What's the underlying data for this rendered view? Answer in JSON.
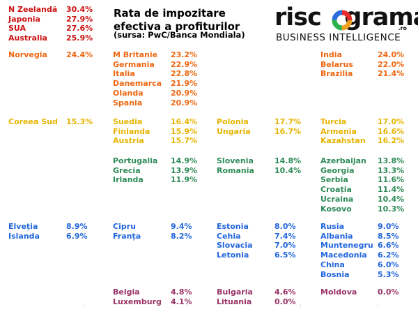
{
  "header": {
    "title_line1": "Rata de impozitare",
    "title_line2": "efectiva a profiturilor",
    "source": "(sursa: PwC/Banca Mondiala)"
  },
  "logo": {
    "word": "riscograma",
    "domain": ".ro",
    "tagline": "BUSINESS INTELLIGENCE"
  },
  "colors": {
    "red": "#cc1111",
    "orange": "#ee6611",
    "yellow": "#e6b400",
    "green": "#2e8b57",
    "blue": "#2266dd",
    "purple": "#993366"
  },
  "chart_data": {
    "type": "table",
    "title": "Rata de impozitare efectiva a profiturilor",
    "subtitle": "(sursa: PwC/Banca Mondiala)",
    "groups": [
      {
        "color": "red",
        "entries": [
          {
            "name": "N Zeelandă",
            "value": "30.4%"
          },
          {
            "name": "Japonia",
            "value": "27.9%"
          },
          {
            "name": "SUA",
            "value": "27.6%"
          },
          {
            "name": "Australia",
            "value": "25.9%"
          }
        ]
      },
      {
        "color": "orange",
        "entries": [
          {
            "name": "Norvegia",
            "value": "24.4%"
          }
        ]
      },
      {
        "color": "orange",
        "entries": [
          {
            "name": "M Britanie",
            "value": "23.2%"
          },
          {
            "name": "Germania",
            "value": "22.9%"
          },
          {
            "name": "Italia",
            "value": "22.8%"
          },
          {
            "name": "Danemarca",
            "value": "21.9%"
          },
          {
            "name": "Olanda",
            "value": "20.9%"
          },
          {
            "name": "Spania",
            "value": "20.9%"
          }
        ]
      },
      {
        "color": "orange",
        "entries": [
          {
            "name": "India",
            "value": "24.0%"
          },
          {
            "name": "Belarus",
            "value": "22.0%"
          },
          {
            "name": "Brazilia",
            "value": "21.4%"
          }
        ]
      },
      {
        "color": "yellow",
        "entries": [
          {
            "name": "Coreea Sud",
            "value": "15.3%"
          }
        ]
      },
      {
        "color": "yellow",
        "entries": [
          {
            "name": "Suedia",
            "value": "16.4%"
          },
          {
            "name": "Finlanda",
            "value": "15.9%"
          },
          {
            "name": "Austria",
            "value": "15.7%"
          }
        ]
      },
      {
        "color": "yellow",
        "entries": [
          {
            "name": "Polonia",
            "value": "17.7%"
          },
          {
            "name": "Ungaria",
            "value": "16.7%"
          }
        ]
      },
      {
        "color": "yellow",
        "entries": [
          {
            "name": "Turcia",
            "value": "17.0%"
          },
          {
            "name": "Armenia",
            "value": "16.6%"
          },
          {
            "name": "Kazahstan",
            "value": "16.2%"
          }
        ]
      },
      {
        "color": "green",
        "entries": [
          {
            "name": "Portugalia",
            "value": "14.9%"
          },
          {
            "name": "Grecia",
            "value": "13.9%"
          },
          {
            "name": "Irlanda",
            "value": "11.9%"
          }
        ]
      },
      {
        "color": "green",
        "entries": [
          {
            "name": "Slovenia",
            "value": "14.8%"
          },
          {
            "name": "Romania",
            "value": "10.4%"
          }
        ]
      },
      {
        "color": "green",
        "entries": [
          {
            "name": "Azerbaijan",
            "value": "13.8%"
          },
          {
            "name": "Georgia",
            "value": "13.3%"
          },
          {
            "name": "Serbia",
            "value": "11.6%"
          },
          {
            "name": "Croația",
            "value": "11.4%"
          },
          {
            "name": "Ucraina",
            "value": "10.4%"
          },
          {
            "name": "Kosovo",
            "value": "10.3%"
          }
        ]
      },
      {
        "color": "blue",
        "entries": [
          {
            "name": "Elveția",
            "value": "8.9%"
          },
          {
            "name": "Islanda",
            "value": "6.9%"
          }
        ]
      },
      {
        "color": "blue",
        "entries": [
          {
            "name": "Cipru",
            "value": "9.4%"
          },
          {
            "name": "Franța",
            "value": "8.2%"
          }
        ]
      },
      {
        "color": "blue",
        "entries": [
          {
            "name": "Estonia",
            "value": "8.0%"
          },
          {
            "name": "Cehia",
            "value": "7.4%"
          },
          {
            "name": "Slovacia",
            "value": "7.0%"
          },
          {
            "name": "Letonia",
            "value": "6.5%"
          }
        ]
      },
      {
        "color": "blue",
        "entries": [
          {
            "name": "Rusia",
            "value": "9.0%"
          },
          {
            "name": "Albania",
            "value": "8.5%"
          },
          {
            "name": "Muntenegru",
            "value": "6.6%"
          },
          {
            "name": "Macedonia",
            "value": "6.2%"
          },
          {
            "name": "China",
            "value": "6.0%"
          },
          {
            "name": "Bosnia",
            "value": "5.3%"
          }
        ]
      },
      {
        "color": "purple",
        "entries": [
          {
            "name": "Belgia",
            "value": "4.8%"
          },
          {
            "name": "Luxemburg",
            "value": "4.1%"
          }
        ]
      },
      {
        "color": "purple",
        "entries": [
          {
            "name": "Bulgaria",
            "value": "4.6%"
          },
          {
            "name": "Lituania",
            "value": "0.0%"
          }
        ]
      },
      {
        "color": "purple",
        "entries": [
          {
            "name": "Moldova",
            "value": "0.0%"
          }
        ]
      }
    ]
  }
}
